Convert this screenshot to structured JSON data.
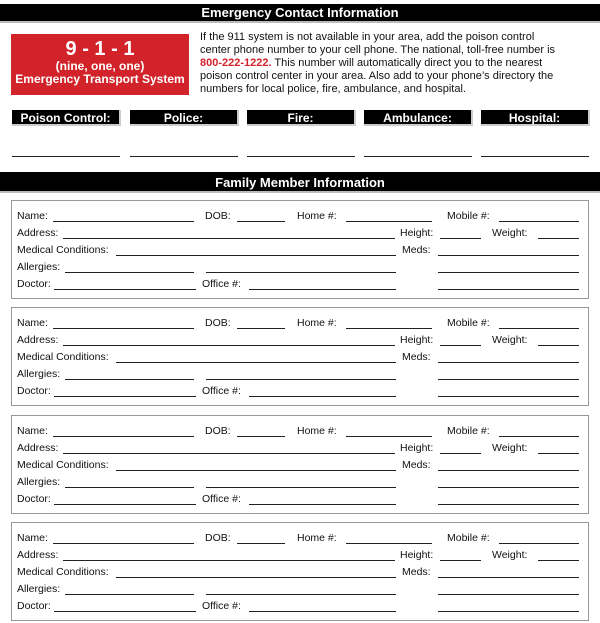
{
  "emergency": {
    "title": "Emergency Contact Information",
    "number": "9 - 1 - 1",
    "spelled": "(nine, one, one)",
    "system": "Emergency Transport System",
    "intro_before": "If the 911 system is not available in your area, add the poison control center phone number to your cell phone. The national, toll-free number is ",
    "poison_number": "800-222-1222.",
    "intro_after": " This number will automatically direct you to the nearest poison control center in your area. Also add to your phone’s directory the numbers for local police, fire, ambulance, and hospital.",
    "contacts": [
      "Poison Control:",
      "Police:",
      "Fire:",
      "Ambulance:",
      "Hospital:"
    ],
    "accent": "#d2232a"
  },
  "family": {
    "title": "Family Member Information",
    "card_count": 4,
    "labels": {
      "name": "Name:",
      "dob": "DOB:",
      "home": "Home #:",
      "mobile": "Mobile #:",
      "address": "Address:",
      "height": "Height:",
      "weight": "Weight:",
      "medical": "Medical Conditions:",
      "meds": "Meds:",
      "allergies": "Allergies:",
      "doctor": "Doctor:",
      "office": "Office #:"
    }
  }
}
